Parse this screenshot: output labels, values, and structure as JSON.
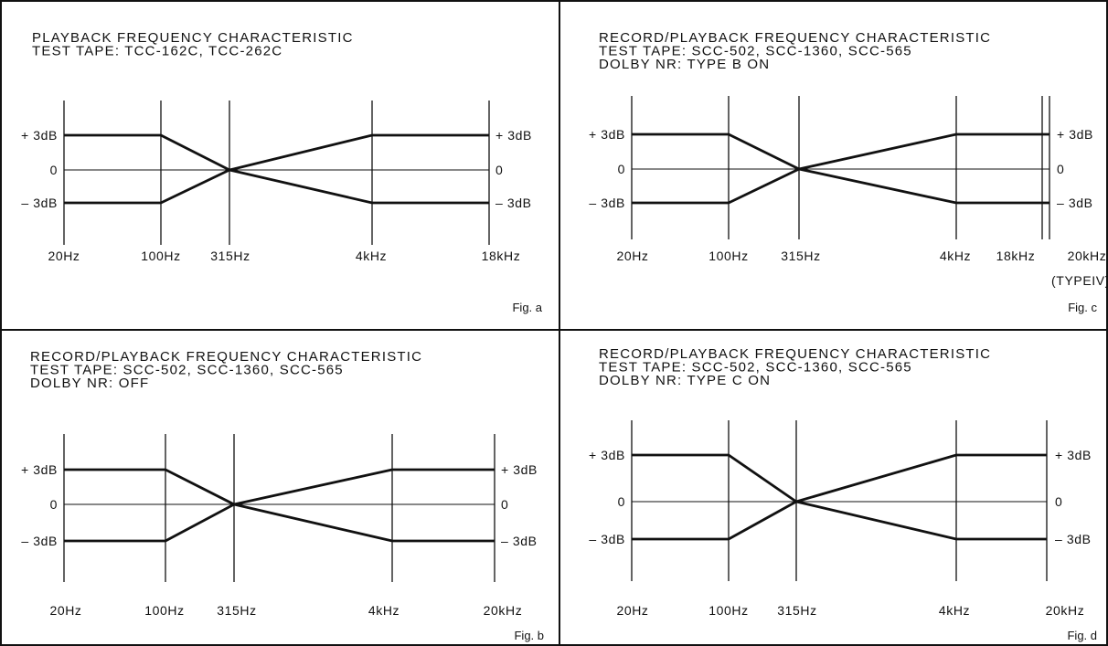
{
  "panels": [
    {
      "id": "a",
      "title_lines": [
        "PLAYBACK FREQUENCY CHARACTERISTIC",
        "TEST TAPE: TCC-162C, TCC-262C"
      ],
      "x_labels": [
        "20Hz",
        "100Hz",
        "315Hz",
        "4kHz",
        "18kHz"
      ],
      "y_labels": [
        "+ 3dB",
        "0",
        "– 3dB"
      ],
      "fig": "Fig. a"
    },
    {
      "id": "b",
      "title_lines": [
        "RECORD/PLAYBACK FREQUENCY CHARACTERISTIC",
        "TEST TAPE: SCC-502, SCC-1360, SCC-565",
        "DOLBY NR: OFF"
      ],
      "x_labels": [
        "20Hz",
        "100Hz",
        "315Hz",
        "4kHz",
        "20kHz"
      ],
      "y_labels": [
        "+ 3dB",
        "0",
        "– 3dB"
      ],
      "fig": "Fig. b"
    },
    {
      "id": "c",
      "title_lines": [
        "RECORD/PLAYBACK FREQUENCY CHARACTERISTIC",
        "TEST TAPE: SCC-502, SCC-1360, SCC-565",
        "DOLBY NR: TYPE B ON"
      ],
      "x_labels": [
        "20Hz",
        "100Hz",
        "315Hz",
        "4kHz",
        "18kHz",
        "20kHz"
      ],
      "x_note": "(TYPEIV)",
      "y_labels": [
        "+ 3dB",
        "0",
        "– 3dB"
      ],
      "fig": "Fig. c"
    },
    {
      "id": "d",
      "title_lines": [
        "RECORD/PLAYBACK FREQUENCY CHARACTERISTIC",
        "TEST TAPE: SCC-502, SCC-1360, SCC-565",
        "DOLBY NR: TYPE C ON"
      ],
      "x_labels": [
        "20Hz",
        "100Hz",
        "315Hz",
        "4kHz",
        "20kHz"
      ],
      "y_labels": [
        "+ 3dB",
        "0",
        "– 3dB"
      ],
      "fig": "Fig. d"
    }
  ]
}
